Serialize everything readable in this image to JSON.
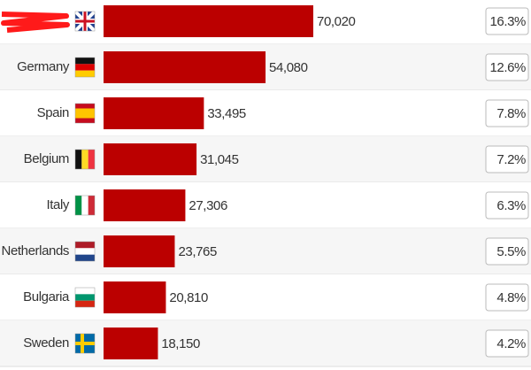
{
  "chart_data": {
    "type": "bar",
    "orientation": "horizontal",
    "categories": [
      null,
      "Germany",
      "Spain",
      "Belgium",
      "Italy",
      "Netherlands",
      "Bulgaria",
      "Sweden"
    ],
    "values": [
      70020,
      54080,
      33495,
      31045,
      27306,
      23765,
      20810,
      18150
    ],
    "value_labels": [
      "70,020",
      "54,080",
      "33,495",
      "31,045",
      "27,306",
      "23,765",
      "20,810",
      "18,150"
    ],
    "color": "#bb0000",
    "shares": [
      16.3,
      12.6,
      7.8,
      7.2,
      6.3,
      5.5,
      4.8,
      4.2
    ],
    "share_labels": [
      "16.3%",
      "12.6%",
      "7.8%",
      "7.2%",
      "6.3%",
      "5.5%",
      "4.8%",
      "4.2%"
    ]
  }
}
